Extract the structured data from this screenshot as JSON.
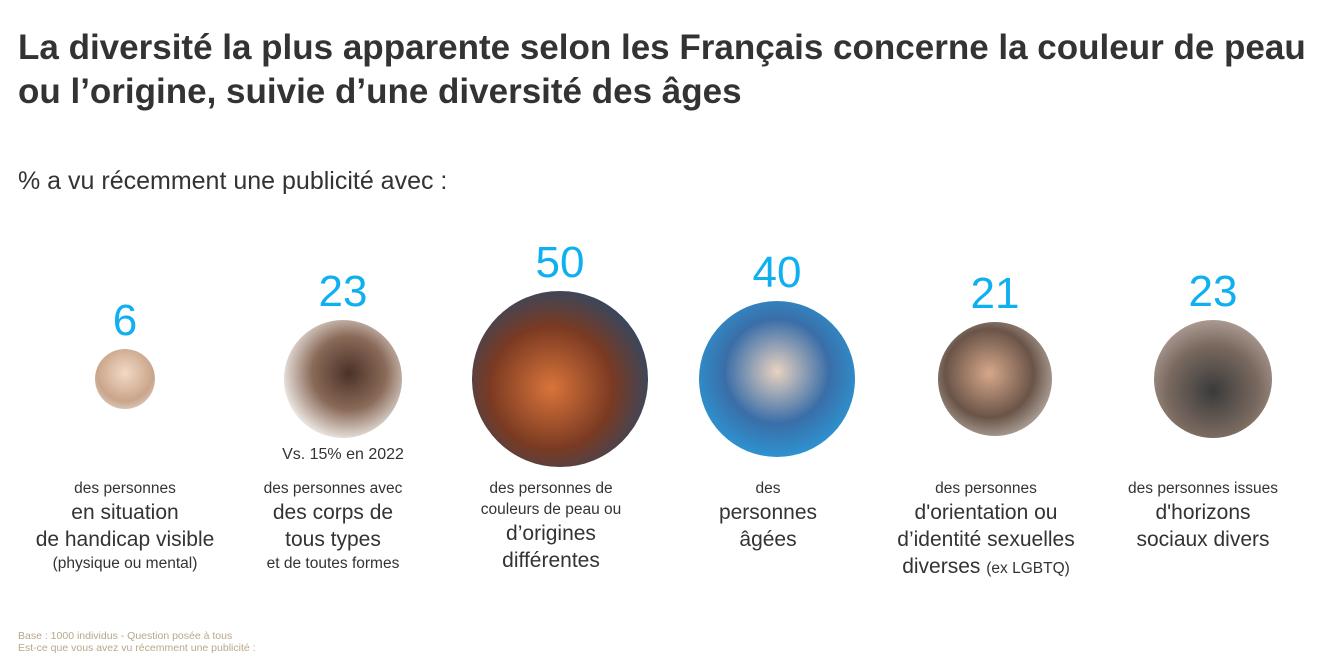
{
  "title": "La diversité la plus apparente selon les Français concerne la couleur de peau ou l’origine, suivie d’une diversité des âges",
  "subtitle": "% a vu récemment une publicité avec :",
  "colors": {
    "number": "#0fb0f0",
    "text": "#333333",
    "footnote": "#b8a88a"
  },
  "chart_data": {
    "type": "bubble",
    "categories": [
      "handicap visible",
      "corps de tous types",
      "couleurs de peau / origines",
      "personnes âgées",
      "orientation / identité sexuelles",
      "horizons sociaux divers"
    ],
    "values": [
      6,
      23,
      50,
      40,
      21,
      23
    ],
    "value_labels": [
      "6",
      "23",
      "50",
      "40",
      "21",
      "23"
    ],
    "unit": "%",
    "annotations": [
      {
        "category": "corps de tous types",
        "text": "Vs. 15% en 2022"
      }
    ]
  },
  "labels": [
    {
      "l1": "des personnes",
      "l2": "en situation",
      "l3": "de handicap visible",
      "l4": "(physique ou mental)"
    },
    {
      "l1": "des personnes avec",
      "l2": "des corps de",
      "l3": "tous types",
      "l4": "et de toutes formes"
    },
    {
      "l1": "des personnes de",
      "l2": "couleurs de peau ou",
      "l3": "d’origines",
      "l4": "différentes"
    },
    {
      "l1": "des",
      "l2": "personnes",
      "l3": "âgées"
    },
    {
      "l1": "des personnes",
      "l2": "d'orientation ou",
      "l3": "d’identité sexuelles",
      "l4": "diverses",
      "l5": "(ex LGBTQ)"
    },
    {
      "l1": "des personnes issues",
      "l2": "d'horizons",
      "l3": "sociaux divers"
    }
  ],
  "footnote": {
    "base": "Base : 1000 individus - Question posée à tous",
    "question": "Est-ce que vous avez vu récemment une publicité :"
  }
}
